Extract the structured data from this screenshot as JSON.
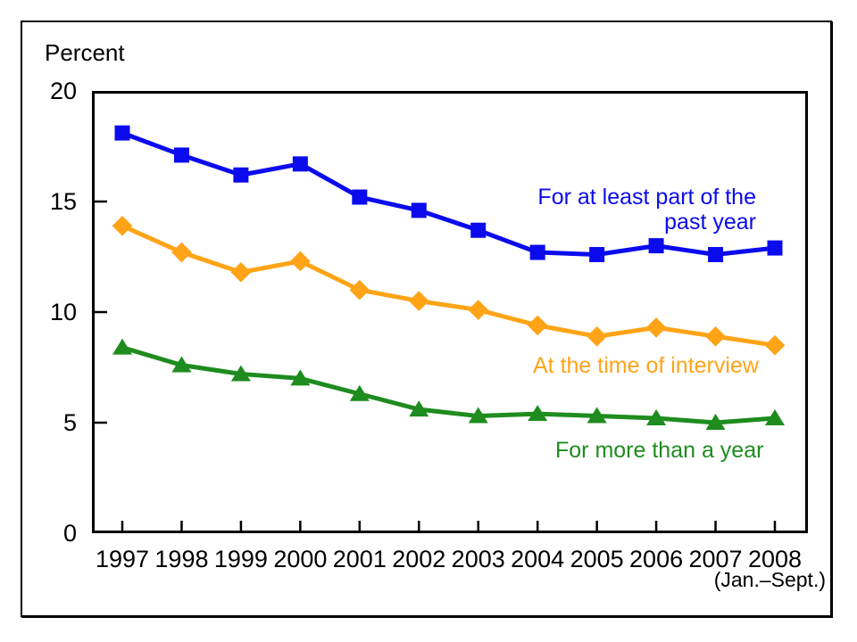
{
  "colors": {
    "part_year": "#0b0bee",
    "interview": "#ffa417",
    "more_than_year": "#1e8c1e",
    "axis": "#000000"
  },
  "labels": {
    "percent_title": "Percent",
    "annotation_blue_line1": "For at least part of the",
    "annotation_blue_line2": "past year",
    "annotation_orange": "At the time of interview",
    "annotation_green": "For more than a year",
    "x_note": "(Jan.–Sept.)"
  },
  "chart_data": {
    "type": "line",
    "title": "",
    "ylabel": "Percent",
    "xlabel": "",
    "ylim": [
      0,
      20
    ],
    "yticks": [
      0,
      5,
      10,
      15,
      20
    ],
    "grid": false,
    "legend_position": "inline-annotations",
    "x": [
      "1997",
      "1998",
      "1999",
      "2000",
      "2001",
      "2002",
      "2003",
      "2004",
      "2005",
      "2006",
      "2007",
      "2008"
    ],
    "x_last_note": "(Jan.–Sept.)",
    "series": [
      {
        "id": "part-year",
        "name": "For at least part of the past year",
        "marker": "square",
        "color": "#0b0bee",
        "values": [
          18.1,
          17.1,
          16.2,
          16.7,
          15.2,
          14.6,
          13.7,
          12.7,
          12.6,
          13.0,
          12.6,
          12.9
        ]
      },
      {
        "id": "interview",
        "name": "At the time of interview",
        "marker": "diamond",
        "color": "#ffa417",
        "values": [
          13.9,
          12.7,
          11.8,
          12.3,
          11.0,
          10.5,
          10.1,
          9.4,
          8.9,
          9.3,
          8.9,
          8.5
        ]
      },
      {
        "id": "more-than-year",
        "name": "For more than a year",
        "marker": "triangle-up",
        "color": "#1e8c1e",
        "values": [
          8.4,
          7.6,
          7.2,
          7.0,
          6.3,
          5.6,
          5.3,
          5.4,
          5.3,
          5.2,
          5.0,
          5.2
        ]
      }
    ],
    "annotations": [
      {
        "series": "part-year",
        "text": "For at least part of the past year",
        "color": "#0b0bee",
        "align": "right"
      },
      {
        "series": "interview",
        "text": "At the time of interview",
        "color": "#ffa417",
        "align": "left"
      },
      {
        "series": "more-than-year",
        "text": "For more than a year",
        "color": "#1e8c1e",
        "align": "left"
      }
    ]
  }
}
